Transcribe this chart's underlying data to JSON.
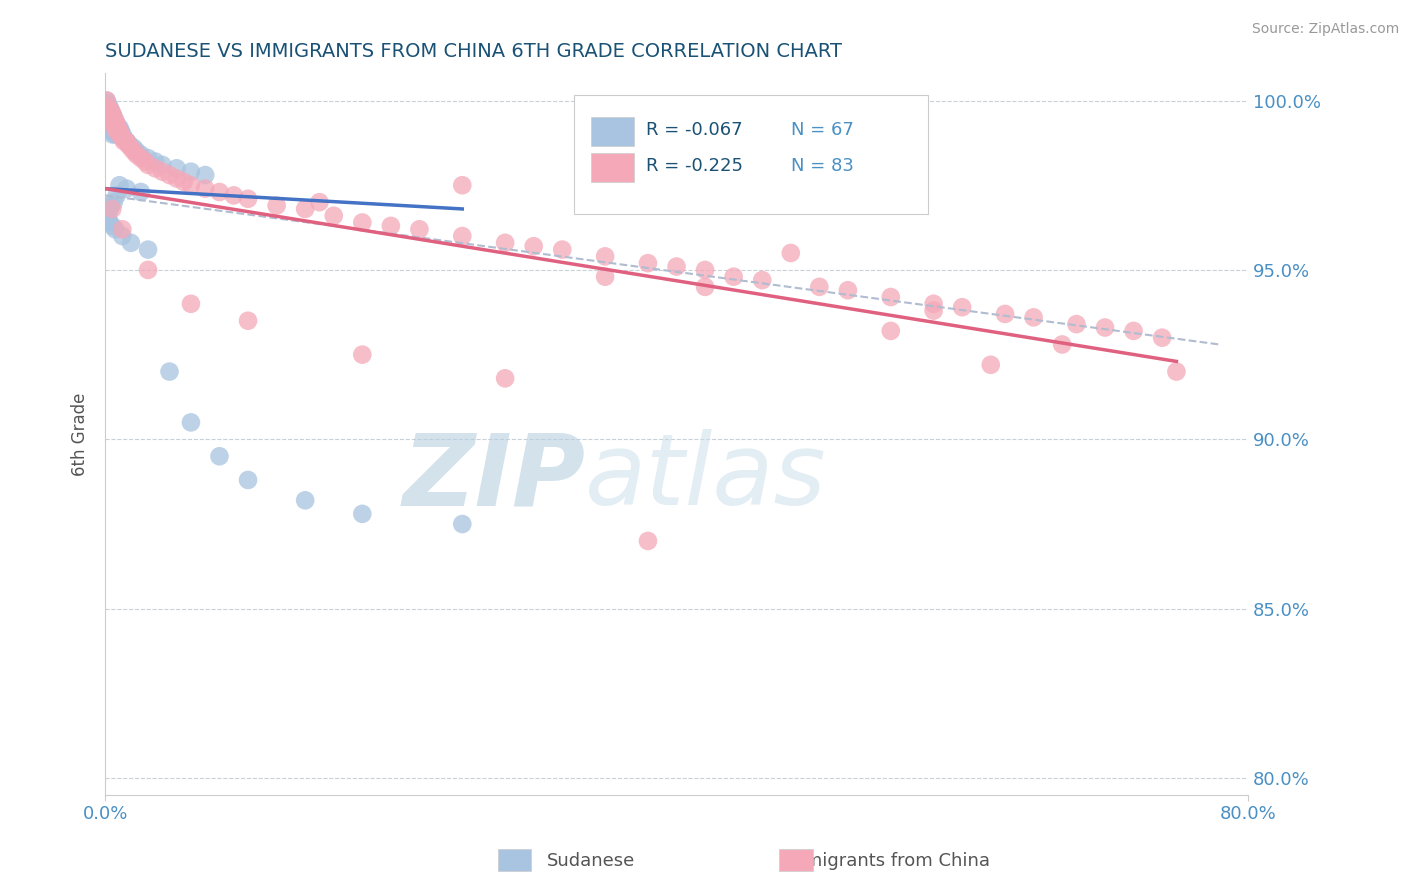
{
  "title": "SUDANESE VS IMMIGRANTS FROM CHINA 6TH GRADE CORRELATION CHART",
  "source": "Source: ZipAtlas.com",
  "ylabel": "6th Grade",
  "xlim": [
    0.0,
    0.8
  ],
  "ylim": [
    0.795,
    1.008
  ],
  "x_ticks": [
    0.0,
    0.8
  ],
  "x_tick_labels": [
    "0.0%",
    "80.0%"
  ],
  "y_ticks": [
    0.8,
    0.85,
    0.9,
    0.95,
    1.0
  ],
  "y_tick_labels": [
    "80.0%",
    "85.0%",
    "90.0%",
    "95.0%",
    "100.0%"
  ],
  "blue_R": -0.067,
  "blue_N": 67,
  "pink_R": -0.225,
  "pink_N": 83,
  "blue_color": "#a8c4e0",
  "pink_color": "#f4a8b8",
  "blue_line_color": "#4472c4",
  "pink_line_color": "#e06080",
  "dashed_line_color": "#b0bcd0",
  "title_color": "#1a5276",
  "axis_label_color": "#555555",
  "tick_label_color": "#4a90c4",
  "watermark_color": "#c8d8ea",
  "legend_R_color": "#1a5276",
  "legend_N_color": "#4a90c4",
  "blue_x": [
    0.001,
    0.001,
    0.001,
    0.002,
    0.002,
    0.002,
    0.002,
    0.003,
    0.003,
    0.003,
    0.004,
    0.004,
    0.004,
    0.004,
    0.005,
    0.005,
    0.005,
    0.005,
    0.006,
    0.006,
    0.006,
    0.007,
    0.007,
    0.007,
    0.008,
    0.008,
    0.009,
    0.009,
    0.01,
    0.01,
    0.011,
    0.012,
    0.013,
    0.015,
    0.017,
    0.02,
    0.022,
    0.025,
    0.03,
    0.035,
    0.04,
    0.05,
    0.06,
    0.07,
    0.01,
    0.015,
    0.025,
    0.008,
    0.006,
    0.004,
    0.003,
    0.002,
    0.001,
    0.002,
    0.003,
    0.005,
    0.007,
    0.012,
    0.018,
    0.03,
    0.045,
    0.06,
    0.08,
    0.1,
    0.14,
    0.18,
    0.25
  ],
  "blue_y": [
    1.0,
    0.998,
    0.996,
    0.999,
    0.997,
    0.995,
    0.993,
    0.998,
    0.996,
    0.994,
    0.997,
    0.995,
    0.993,
    0.991,
    0.996,
    0.994,
    0.992,
    0.99,
    0.995,
    0.993,
    0.991,
    0.994,
    0.992,
    0.99,
    0.993,
    0.991,
    0.992,
    0.99,
    0.992,
    0.99,
    0.991,
    0.99,
    0.989,
    0.988,
    0.987,
    0.986,
    0.985,
    0.984,
    0.983,
    0.982,
    0.981,
    0.98,
    0.979,
    0.978,
    0.975,
    0.974,
    0.973,
    0.972,
    0.97,
    0.969,
    0.968,
    0.967,
    0.966,
    0.965,
    0.964,
    0.963,
    0.962,
    0.96,
    0.958,
    0.956,
    0.92,
    0.905,
    0.895,
    0.888,
    0.882,
    0.878,
    0.875
  ],
  "pink_x": [
    0.001,
    0.002,
    0.003,
    0.003,
    0.004,
    0.004,
    0.005,
    0.005,
    0.006,
    0.006,
    0.007,
    0.007,
    0.008,
    0.008,
    0.009,
    0.01,
    0.01,
    0.011,
    0.012,
    0.013,
    0.015,
    0.016,
    0.018,
    0.02,
    0.022,
    0.025,
    0.028,
    0.03,
    0.035,
    0.04,
    0.045,
    0.05,
    0.055,
    0.06,
    0.07,
    0.08,
    0.09,
    0.1,
    0.12,
    0.14,
    0.16,
    0.18,
    0.2,
    0.22,
    0.25,
    0.28,
    0.3,
    0.32,
    0.35,
    0.38,
    0.4,
    0.42,
    0.44,
    0.46,
    0.5,
    0.52,
    0.55,
    0.58,
    0.6,
    0.63,
    0.65,
    0.68,
    0.7,
    0.72,
    0.74,
    0.005,
    0.012,
    0.03,
    0.06,
    0.1,
    0.18,
    0.28,
    0.35,
    0.48,
    0.58,
    0.67,
    0.75,
    0.38,
    0.25,
    0.15,
    0.42,
    0.55,
    0.62
  ],
  "pink_y": [
    1.0,
    0.998,
    0.997,
    0.996,
    0.997,
    0.995,
    0.996,
    0.994,
    0.995,
    0.993,
    0.994,
    0.992,
    0.993,
    0.991,
    0.992,
    0.991,
    0.99,
    0.99,
    0.989,
    0.988,
    0.988,
    0.987,
    0.986,
    0.985,
    0.984,
    0.983,
    0.982,
    0.981,
    0.98,
    0.979,
    0.978,
    0.977,
    0.976,
    0.975,
    0.974,
    0.973,
    0.972,
    0.971,
    0.969,
    0.968,
    0.966,
    0.964,
    0.963,
    0.962,
    0.96,
    0.958,
    0.957,
    0.956,
    0.954,
    0.952,
    0.951,
    0.95,
    0.948,
    0.947,
    0.945,
    0.944,
    0.942,
    0.94,
    0.939,
    0.937,
    0.936,
    0.934,
    0.933,
    0.932,
    0.93,
    0.968,
    0.962,
    0.95,
    0.94,
    0.935,
    0.925,
    0.918,
    0.948,
    0.955,
    0.938,
    0.928,
    0.92,
    0.87,
    0.975,
    0.97,
    0.945,
    0.932,
    0.922
  ]
}
